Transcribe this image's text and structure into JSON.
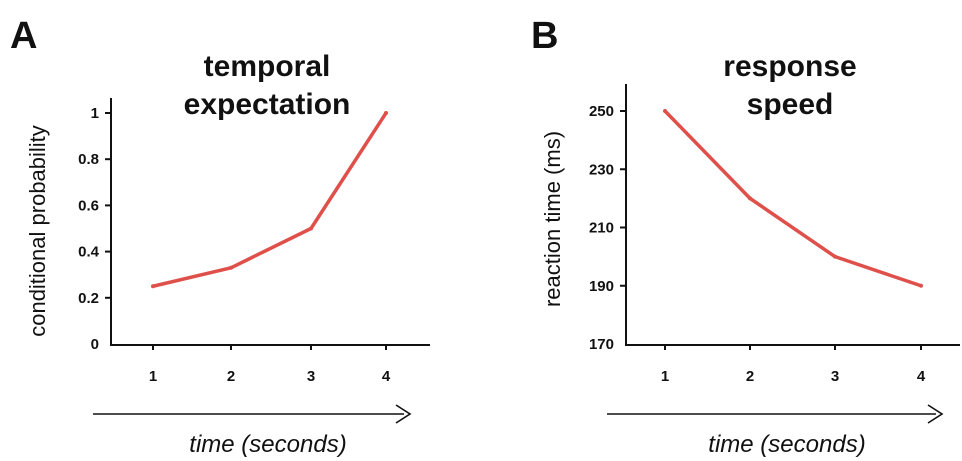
{
  "chart_data": [
    {
      "type": "line",
      "panel_label": "A",
      "title_lines": [
        "temporal",
        "expectation"
      ],
      "ylabel": "conditional probability",
      "xlabel": "time (seconds)",
      "x": [
        1,
        2,
        3,
        4
      ],
      "x_tick_labels": [
        "1",
        "2",
        "3",
        "4"
      ],
      "ylim": [
        0,
        1
      ],
      "y_ticks": [
        0,
        0.2,
        0.4,
        0.6,
        0.8,
        1
      ],
      "y_tick_labels": [
        "0",
        "0.2",
        "0.4",
        "0.6",
        "0.8",
        "1"
      ],
      "series": [
        {
          "values": [
            0.25,
            0.33,
            0.5,
            1.0
          ],
          "color": "#e0504a"
        }
      ],
      "grid": false,
      "legend": "none"
    },
    {
      "type": "line",
      "panel_label": "B",
      "title_lines": [
        "response",
        "speed"
      ],
      "ylabel": "reaction time  (ms)",
      "xlabel": "time (seconds)",
      "x": [
        1,
        2,
        3,
        4
      ],
      "x_tick_labels": [
        "1",
        "2",
        "3",
        "4"
      ],
      "ylim": [
        170,
        250
      ],
      "y_ticks": [
        170,
        190,
        210,
        230,
        250
      ],
      "y_tick_labels": [
        "170",
        "190",
        "210",
        "230",
        "250"
      ],
      "series": [
        {
          "values": [
            250,
            220,
            200,
            190
          ],
          "color": "#e0504a"
        }
      ],
      "grid": false,
      "legend": "none"
    }
  ]
}
